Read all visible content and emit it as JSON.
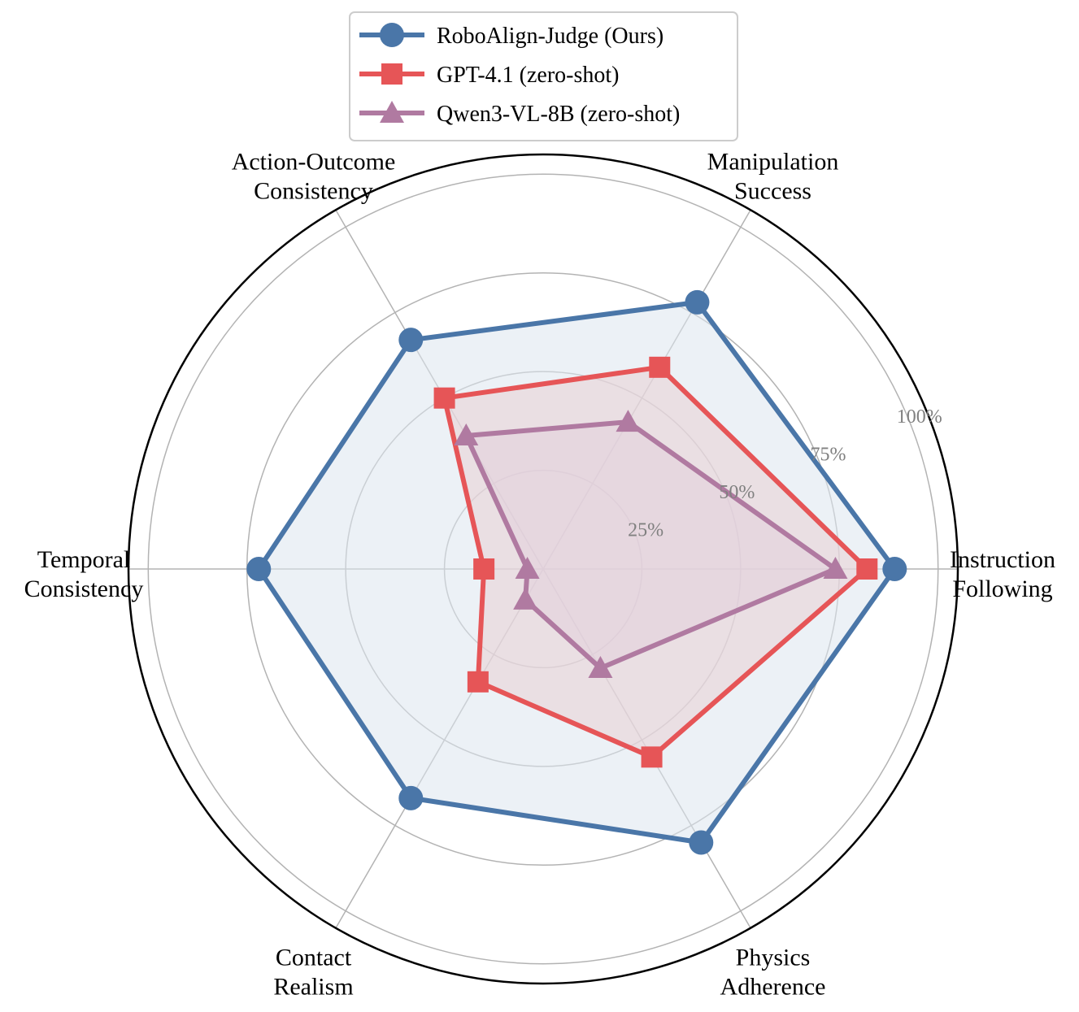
{
  "chart_data": {
    "type": "radar",
    "axes": [
      [
        "Instruction",
        "Following"
      ],
      [
        "Manipulation",
        "Success"
      ],
      [
        "Action-Outcome",
        "Consistency"
      ],
      [
        "Temporal",
        "Consistency"
      ],
      [
        "Contact",
        "Realism"
      ],
      [
        "Physics",
        "Adherence"
      ]
    ],
    "rlim": [
      0,
      105
    ],
    "radial_ticks": [
      25,
      50,
      75,
      100
    ],
    "radial_tick_labels": [
      "25%",
      "50%",
      "75%",
      "100%"
    ],
    "grid": true,
    "legend_position": "top-center",
    "series": [
      {
        "name": "RoboAlign-Judge (Ours)",
        "marker": "circle",
        "color": "#4a76a8",
        "fill_color": "#dde6ef",
        "values": [
          89,
          78,
          67,
          72,
          67,
          80
        ]
      },
      {
        "name": "GPT-4.1 (zero-shot)",
        "marker": "square",
        "color": "#e65557",
        "fill_color": "#e9cfd4",
        "values": [
          82,
          59,
          50,
          15,
          33,
          55
        ]
      },
      {
        "name": "Qwen3-VL-8B (zero-shot)",
        "marker": "triangle",
        "color": "#b07aa1",
        "fill_color": "#e2d0dc",
        "values": [
          74,
          43,
          39,
          4,
          9,
          29
        ]
      }
    ]
  }
}
